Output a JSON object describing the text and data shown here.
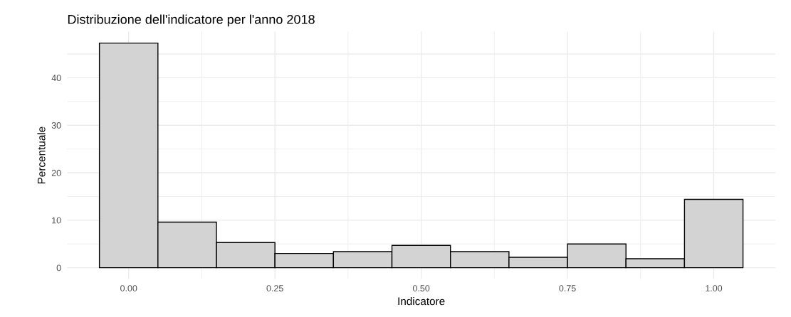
{
  "chart_data": {
    "type": "histogram",
    "title": "Distribuzione dell'indicatore per l'anno 2018",
    "xlabel": "Indicatore",
    "ylabel": "Percentuale",
    "bins": [
      -0.05,
      0.05,
      0.15,
      0.25,
      0.35,
      0.45,
      0.55,
      0.65,
      0.75,
      0.85,
      0.95,
      1.05
    ],
    "values": [
      47.3,
      9.6,
      5.3,
      3.0,
      3.4,
      4.7,
      3.4,
      2.2,
      5.0,
      1.9,
      14.4
    ],
    "color": "#d3d3d3",
    "xlim": [
      -0.105,
      1.105
    ],
    "xticks": [
      {
        "value": 0,
        "label": "0.00"
      },
      {
        "value": 0.25,
        "label": "0.25"
      },
      {
        "value": 0.5,
        "label": "0.50"
      },
      {
        "value": 0.75,
        "label": "0.75"
      },
      {
        "value": 1,
        "label": "1.00"
      }
    ],
    "ylim": [
      -2.37,
      49.7
    ],
    "yticks": [
      0,
      10,
      20,
      30,
      40
    ],
    "grid": true
  }
}
